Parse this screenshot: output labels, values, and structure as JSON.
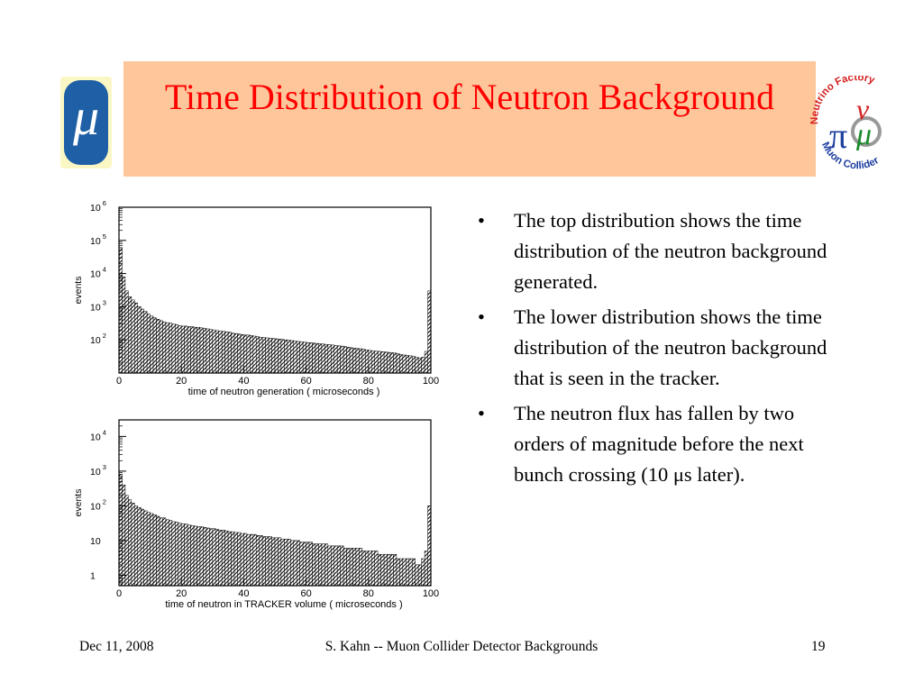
{
  "slide": {
    "title": "Time Distribution of Neutron Background",
    "left_logo": {
      "glyph": "μ",
      "colors": {
        "background": "#fbf7c4",
        "pill": "#1f5fa6"
      }
    },
    "right_logo": {
      "text_top": "Neutrino Factory",
      "text_bottom": "Muon Collider",
      "glyph_pi": "π",
      "glyph_nu": "ν",
      "glyph_mu": "μ",
      "colors": {
        "red": "#d42020",
        "green": "#1a8a2a",
        "blue": "#1e3fa0"
      }
    },
    "title_box_color": "#fdc79b",
    "title_color": "#ff0000"
  },
  "bullets": [
    "The top distribution shows the time distribution of the neutron background generated.",
    "The lower distribution shows the time distribution of the neutron background that  is seen in the tracker.",
    "The neutron flux has fallen by two orders of magnitude before the next bunch crossing (10 μs later)."
  ],
  "bullet_symbol": "•",
  "footer": {
    "date": "Dec 11, 2008",
    "center": "S. Kahn -- Muon Collider Detector Backgrounds",
    "page": "19"
  },
  "chart_data": [
    {
      "type": "bar",
      "xlabel": "time of neutron generation  ( microseconds )",
      "ylabel": "events",
      "log_y": true,
      "xlim": [
        0,
        100
      ],
      "ylim": [
        10,
        1000000
      ],
      "x_ticks": [
        "0",
        "20",
        "40",
        "60",
        "80",
        "100"
      ],
      "y_ticks": [
        {
          "value": 100,
          "base": "10",
          "exp": "2"
        },
        {
          "value": 1000,
          "base": "10",
          "exp": "3"
        },
        {
          "value": 10000,
          "base": "10",
          "exp": "4"
        },
        {
          "value": 100000,
          "base": "10",
          "exp": "5"
        },
        {
          "value": 1000000,
          "base": "10",
          "exp": "6"
        }
      ],
      "bin_width": 1,
      "values": [
        60000,
        8000,
        3000,
        2000,
        1600,
        1300,
        1000,
        850,
        720,
        600,
        520,
        460,
        420,
        380,
        350,
        330,
        320,
        300,
        290,
        270,
        260,
        260,
        250,
        250,
        240,
        240,
        230,
        225,
        215,
        205,
        200,
        190,
        185,
        180,
        175,
        170,
        160,
        155,
        150,
        145,
        140,
        140,
        135,
        130,
        125,
        120,
        118,
        115,
        112,
        110,
        108,
        105,
        103,
        100,
        98,
        95,
        93,
        90,
        88,
        85,
        83,
        82,
        80,
        78,
        76,
        75,
        73,
        72,
        70,
        68,
        66,
        65,
        63,
        60,
        58,
        56,
        55,
        54,
        52,
        50,
        48,
        47,
        46,
        45,
        44,
        43,
        42,
        41,
        40,
        38,
        36,
        35,
        34,
        33,
        32,
        30,
        28,
        30,
        45,
        3000
      ]
    },
    {
      "type": "bar",
      "xlabel": "time of neutron in TRACKER volume  ( microseconds )",
      "ylabel": "events",
      "log_y": true,
      "xlim": [
        0,
        100
      ],
      "ylim": [
        0.5,
        30000
      ],
      "x_ticks": [
        "0",
        "20",
        "40",
        "60",
        "80",
        "100"
      ],
      "y_ticks": [
        {
          "value": 1,
          "base": "1",
          "exp": ""
        },
        {
          "value": 10,
          "base": "10",
          "exp": ""
        },
        {
          "value": 100,
          "base": "10",
          "exp": "2"
        },
        {
          "value": 1000,
          "base": "10",
          "exp": "3"
        },
        {
          "value": 10000,
          "base": "10",
          "exp": "4"
        }
      ],
      "bin_width": 1,
      "values": [
        800,
        400,
        200,
        150,
        120,
        100,
        90,
        80,
        72,
        65,
        60,
        55,
        50,
        45,
        45,
        40,
        38,
        35,
        34,
        32,
        30,
        30,
        28,
        27,
        26,
        25,
        25,
        24,
        23,
        22,
        22,
        21,
        20,
        20,
        19,
        18,
        18,
        17,
        17,
        16,
        16,
        15,
        15,
        15,
        14,
        14,
        13,
        13,
        13,
        12,
        12,
        12,
        11,
        11,
        11,
        10,
        10,
        10,
        9,
        9,
        9,
        9,
        8,
        8,
        8,
        8,
        8,
        7,
        7,
        7,
        7,
        7,
        6,
        6,
        6,
        6,
        6,
        6,
        5,
        5,
        5,
        5,
        5,
        4,
        4,
        4,
        4,
        4,
        4,
        3,
        3,
        3,
        3,
        3,
        3,
        2,
        2,
        3,
        5,
        100
      ]
    }
  ]
}
